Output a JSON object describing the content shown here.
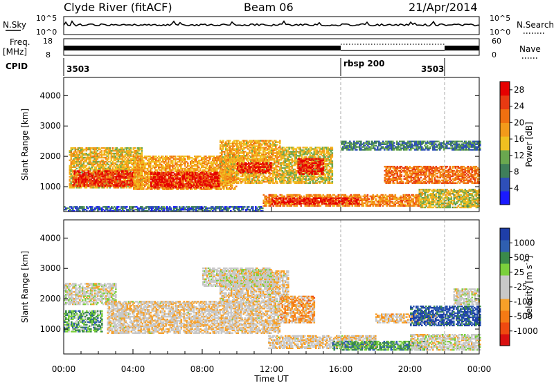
{
  "header": {
    "station": "Clyde River (fitACF)",
    "beam": "Beam 06",
    "date": "21/Apr/2014"
  },
  "top_panels": {
    "nsky_label": "N.Sky",
    "nsky_ticks": [
      "10^5",
      "10^0"
    ],
    "nsearch_label": "N.Search",
    "nsearch_ticks": [
      "10^5",
      "10^0"
    ],
    "freq_label": "Freq.",
    "freq_unit": "[MHz]",
    "freq_ticks": [
      "18",
      "8"
    ],
    "nave_label": "Nave",
    "nave_ticks": [
      "60",
      "0"
    ],
    "cpid_label": "CPID",
    "cpid_segments": [
      {
        "label": "3503",
        "start": "00:00",
        "end": "16:00"
      },
      {
        "label": "rbsp 200",
        "start": "16:00",
        "end": "22:00"
      },
      {
        "label": "3503",
        "start": "22:00",
        "end": "24:00"
      }
    ]
  },
  "colors": {
    "power_scale": [
      "#1a1aff",
      "#2e4fb8",
      "#3f7f5a",
      "#6aa84f",
      "#f0c020",
      "#f39a1a",
      "#f07010",
      "#e83a12",
      "#e60000"
    ],
    "velocity_scale": [
      "#d91010",
      "#ef4a10",
      "#f57a14",
      "#f7a028",
      "#c8c8c8",
      "#c8c8c8",
      "#7bd03c",
      "#3a8a4a",
      "#2f5fb0",
      "#1e3ea8"
    ],
    "axis": "#000000",
    "boundary": "#aaaaaa"
  },
  "chart_data": [
    {
      "type": "heatmap",
      "title": "Power",
      "xlabel": "",
      "ylabel": "Slant Range [km]",
      "ylim": [
        180,
        4600
      ],
      "xlim": [
        "00:00",
        "24:00"
      ],
      "yticks": [
        "1000",
        "2000",
        "3000",
        "4000"
      ],
      "colorbar": {
        "label": "Power [dB]",
        "ticks": [
          "4",
          "8",
          "12",
          "16",
          "20",
          "24",
          "28"
        ],
        "range": [
          0,
          30
        ]
      },
      "bands": [
        {
          "t0": 0.3,
          "t1": 4.5,
          "r0": 950,
          "r1": 2300,
          "value": 16
        },
        {
          "t0": 0.5,
          "t1": 4.0,
          "r0": 1000,
          "r1": 1500,
          "value": 26
        },
        {
          "t0": 4.0,
          "t1": 10.0,
          "r0": 900,
          "r1": 2000,
          "value": 18
        },
        {
          "t0": 5.0,
          "t1": 9.0,
          "r0": 950,
          "r1": 1450,
          "value": 27
        },
        {
          "t0": 9.0,
          "t1": 12.5,
          "r0": 1100,
          "r1": 2500,
          "value": 17
        },
        {
          "t0": 10.0,
          "t1": 12.0,
          "r0": 1450,
          "r1": 1800,
          "value": 27
        },
        {
          "t0": 12.5,
          "t1": 15.5,
          "r0": 1100,
          "r1": 2300,
          "value": 15
        },
        {
          "t0": 13.5,
          "t1": 15.0,
          "r0": 1400,
          "r1": 1900,
          "value": 28
        },
        {
          "t0": 11.5,
          "t1": 20.5,
          "r0": 350,
          "r1": 750,
          "value": 20
        },
        {
          "t0": 12.0,
          "t1": 17.0,
          "r0": 420,
          "r1": 620,
          "value": 28
        },
        {
          "t0": 18.5,
          "t1": 24.0,
          "r0": 1100,
          "r1": 1650,
          "value": 22
        },
        {
          "t0": 20.5,
          "t1": 24.0,
          "r0": 300,
          "r1": 900,
          "value": 14
        },
        {
          "t0": 0.0,
          "t1": 11.5,
          "r0": 180,
          "r1": 350,
          "value": 6
        },
        {
          "t0": 16.0,
          "t1": 24.0,
          "r0": 2200,
          "r1": 2500,
          "value": 8
        }
      ]
    },
    {
      "type": "heatmap",
      "title": "Velocity",
      "xlabel": "Time UT",
      "ylabel": "Slant Range [km]",
      "ylim": [
        180,
        4600
      ],
      "xlim": [
        "00:00",
        "24:00"
      ],
      "xticks": [
        "00:00",
        "04:00",
        "08:00",
        "12:00",
        "16:00",
        "20:00",
        "00:00"
      ],
      "yticks": [
        "1000",
        "2000",
        "3000",
        "4000"
      ],
      "colorbar": {
        "label": "Velocity [m s^-1]",
        "ticks": [
          "1000",
          "500",
          "25",
          "-25",
          "-100",
          "-500",
          "-1000"
        ],
        "range": [
          -1250,
          1250
        ]
      },
      "bands": [
        {
          "t0": 0.0,
          "t1": 3.0,
          "r0": 1800,
          "r1": 2500,
          "value": 0
        },
        {
          "t0": 0.0,
          "t1": 2.2,
          "r0": 900,
          "r1": 1600,
          "value": 500
        },
        {
          "t0": 2.5,
          "t1": 12.5,
          "r0": 850,
          "r1": 1900,
          "value": -120
        },
        {
          "t0": 9.0,
          "t1": 13.0,
          "r0": 1900,
          "r1": 2900,
          "value": -100
        },
        {
          "t0": 8.0,
          "t1": 12.0,
          "r0": 2400,
          "r1": 3000,
          "value": 0
        },
        {
          "t0": 12.5,
          "t1": 14.5,
          "r0": 1200,
          "r1": 2100,
          "value": -400
        },
        {
          "t0": 11.8,
          "t1": 18.0,
          "r0": 350,
          "r1": 800,
          "value": -120
        },
        {
          "t0": 15.5,
          "t1": 21.0,
          "r0": 300,
          "r1": 600,
          "value": 600
        },
        {
          "t0": 18.0,
          "t1": 21.5,
          "r0": 1200,
          "r1": 1500,
          "value": -200
        },
        {
          "t0": 20.0,
          "t1": 24.0,
          "r0": 1100,
          "r1": 1750,
          "value": 1000
        },
        {
          "t0": 20.0,
          "t1": 24.0,
          "r0": 300,
          "r1": 800,
          "value": 0
        },
        {
          "t0": 22.5,
          "t1": 24.0,
          "r0": 1800,
          "r1": 2300,
          "value": 0
        }
      ]
    }
  ]
}
